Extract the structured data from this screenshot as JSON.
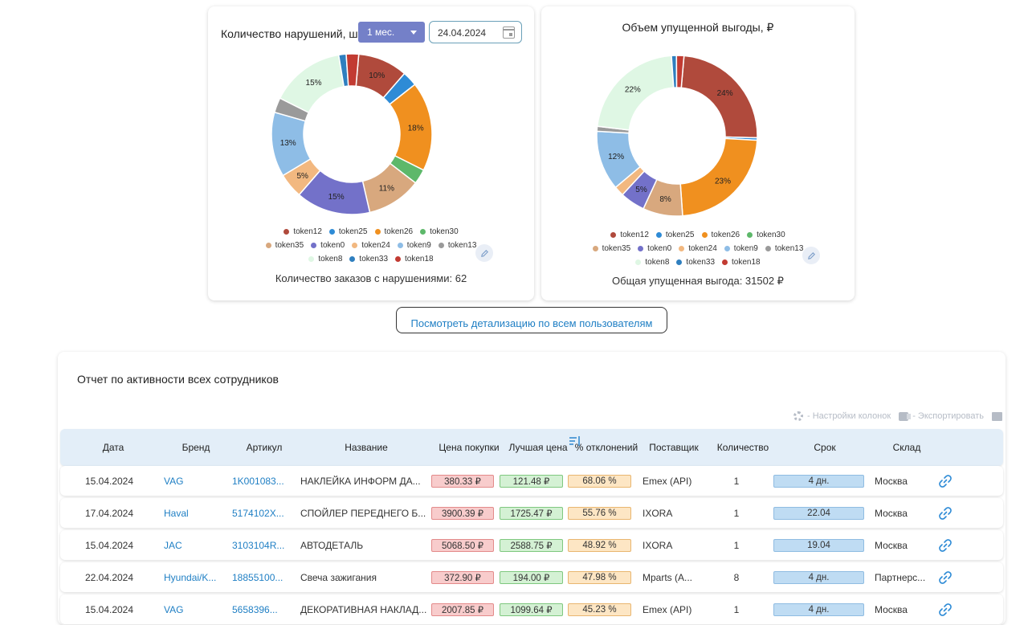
{
  "chart1": {
    "title": "Количество нарушений, шт.",
    "period": "1 мес.",
    "date": "24.04.2024",
    "summary": "Количество заказов с нарушениями: 62"
  },
  "chart2": {
    "title": "Объем упущенной выгоды, ₽",
    "summary": "Общая упущенная выгода: 31502 ₽"
  },
  "legend_rows": [
    [
      "token12",
      "token25",
      "token26",
      "token30"
    ],
    [
      "token35",
      "token0",
      "token24",
      "token9",
      "token13"
    ],
    [
      "token8",
      "token33",
      "token18"
    ]
  ],
  "token_colors": {
    "token12": "#b04a3c",
    "token25": "#2e8bd6",
    "token26": "#f0901f",
    "token30": "#5db86a",
    "token35": "#d8a87e",
    "token0": "#7371c9",
    "token24": "#f2b880",
    "token9": "#8ebde6",
    "token13": "#9a9a9a",
    "token8": "#dff7e4",
    "token33": "#2f7fbf",
    "token18": "#c23b32"
  },
  "chart_data": [
    {
      "type": "pie",
      "title": "Количество нарушений, шт.",
      "labels": [
        "token12",
        "token25",
        "token26",
        "token30",
        "token35",
        "token0",
        "token24",
        "token9",
        "token13",
        "token8",
        "token33",
        "token18"
      ],
      "values": [
        10,
        3,
        18,
        3,
        11,
        15,
        5,
        13,
        3,
        15,
        1.5,
        2.5
      ],
      "data_labels": [
        "10%",
        "",
        "18%",
        "",
        "11%",
        "15%",
        "5%",
        "13%",
        "",
        "15%",
        "",
        ""
      ]
    },
    {
      "type": "pie",
      "title": "Объем упущенной выгоды, ₽",
      "labels": [
        "token12",
        "token25",
        "token26",
        "token30",
        "token35",
        "token0",
        "token24",
        "token9",
        "token13",
        "token8",
        "token33",
        "token18"
      ],
      "values": [
        24,
        0.5,
        23,
        0,
        8,
        5,
        2,
        12,
        1,
        22,
        1,
        1.5
      ],
      "data_labels": [
        "24%",
        "",
        "23%",
        "",
        "8%",
        "5%",
        "",
        "12%",
        "",
        "22%",
        "",
        ""
      ]
    }
  ],
  "details_button": "Посмотреть детализацию по всем пользователям",
  "report": {
    "title": "Отчет по активности всех сотрудников",
    "toolbar": {
      "columns": "- Настройки колонок",
      "export": "- Экспортировать"
    },
    "columns": {
      "date": "Дата",
      "brand": "Бренд",
      "article": "Артикул",
      "name": "Название",
      "buy_price": "Цена покупки",
      "best_price": "Лучшая цена",
      "deviation": "% отклонений",
      "supplier": "Поставщик",
      "qty": "Количество",
      "term": "Срок",
      "warehouse": "Склад"
    },
    "rows": [
      {
        "date": "15.04.2024",
        "brand": "VAG",
        "article": "1K001083...",
        "name": "НАКЛЕЙКА ИНФОРМ ДА...",
        "buy_price": "380.33 ₽",
        "best_price": "121.48 ₽",
        "deviation": "68.06 %",
        "supplier": "Emex (API)",
        "qty": "1",
        "term": "4 дн.",
        "warehouse": "Москва"
      },
      {
        "date": "17.04.2024",
        "brand": "Haval",
        "article": "5174102X...",
        "name": "СПОЙЛЕР ПЕРЕДНЕГО Б...",
        "buy_price": "3900.39 ₽",
        "best_price": "1725.47 ₽",
        "deviation": "55.76 %",
        "supplier": "IXORA",
        "qty": "1",
        "term": "22.04",
        "warehouse": "Москва"
      },
      {
        "date": "15.04.2024",
        "brand": "JAC",
        "article": "3103104R...",
        "name": "АВТОДЕТАЛЬ",
        "buy_price": "5068.50 ₽",
        "best_price": "2588.75 ₽",
        "deviation": "48.92 %",
        "supplier": "IXORA",
        "qty": "1",
        "term": "19.04",
        "warehouse": "Москва"
      },
      {
        "date": "22.04.2024",
        "brand": "Hyundai/K...",
        "article": "18855100...",
        "name": "Свеча зажигания",
        "buy_price": "372.90 ₽",
        "best_price": "194.00 ₽",
        "deviation": "47.98 %",
        "supplier": "Mparts (A...",
        "qty": "8",
        "term": "4 дн.",
        "warehouse": "Партнерс..."
      },
      {
        "date": "15.04.2024",
        "brand": "VAG",
        "article": "5658396...",
        "name": "ДЕКОРАТИВНАЯ НАКЛАД...",
        "buy_price": "2007.85 ₽",
        "best_price": "1099.64 ₽",
        "deviation": "45.23 %",
        "supplier": "Emex (API)",
        "qty": "1",
        "term": "4 дн.",
        "warehouse": "Москва"
      }
    ]
  }
}
